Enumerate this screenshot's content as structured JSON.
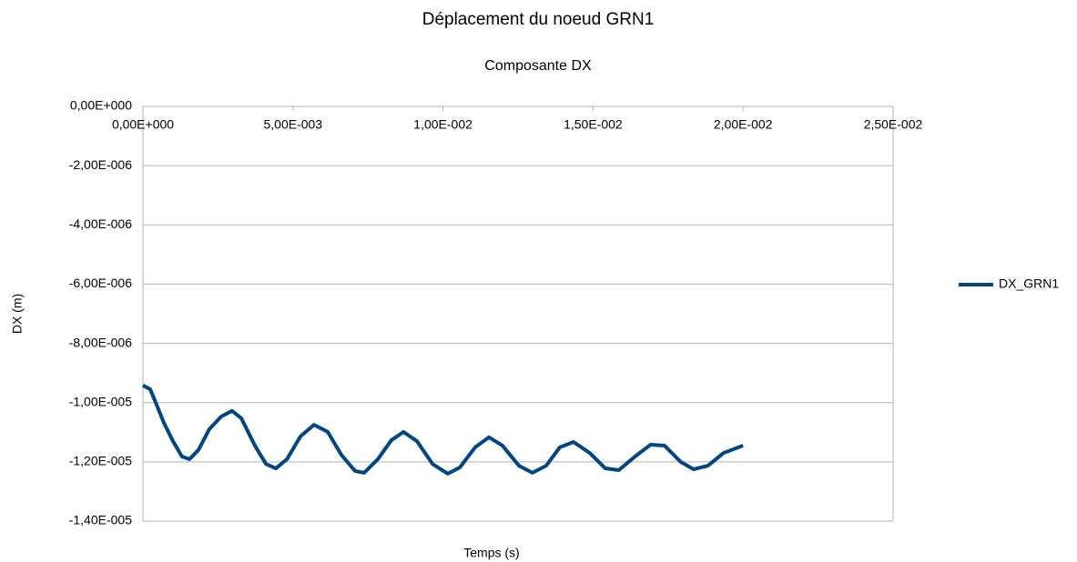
{
  "chart_data": {
    "type": "line",
    "title": "Déplacement du noeud GRN1",
    "subtitle": "Composante DX",
    "x_label": "Temps (s)",
    "y_label": "DX (m)",
    "x": [
      0,
      0.000243,
      0.000455,
      0.000698,
      0.001,
      0.0013,
      0.00155,
      0.00185,
      0.00221,
      0.00261,
      0.00297,
      0.00328,
      0.00373,
      0.0041,
      0.00443,
      0.0048,
      0.00525,
      0.0057,
      0.00616,
      0.00661,
      0.00707,
      0.00737,
      0.00783,
      0.00828,
      0.00868,
      0.00913,
      0.00965,
      0.01016,
      0.01056,
      0.01107,
      0.01153,
      0.01198,
      0.01253,
      0.01298,
      0.01344,
      0.01389,
      0.01435,
      0.01489,
      0.01541,
      0.01586,
      0.0164,
      0.01692,
      0.01738,
      0.01792,
      0.01835,
      0.01883,
      0.01935,
      0.02
    ],
    "series": [
      {
        "name": "DX_GRN1",
        "color": "#004586",
        "values": [
          -9.42e-06,
          -9.55e-06,
          -1.007e-05,
          -1.068e-05,
          -1.13e-05,
          -1.182e-05,
          -1.191e-05,
          -1.16e-05,
          -1.09e-05,
          -1.047e-05,
          -1.028e-05,
          -1.053e-05,
          -1.145e-05,
          -1.207e-05,
          -1.222e-05,
          -1.191e-05,
          -1.114e-05,
          -1.075e-05,
          -1.099e-05,
          -1.176e-05,
          -1.231e-05,
          -1.237e-05,
          -1.191e-05,
          -1.127e-05,
          -1.099e-05,
          -1.13e-05,
          -1.207e-05,
          -1.24e-05,
          -1.219e-05,
          -1.151e-05,
          -1.117e-05,
          -1.145e-05,
          -1.213e-05,
          -1.237e-05,
          -1.213e-05,
          -1.151e-05,
          -1.133e-05,
          -1.17e-05,
          -1.222e-05,
          -1.228e-05,
          -1.182e-05,
          -1.142e-05,
          -1.145e-05,
          -1.2e-05,
          -1.225e-05,
          -1.213e-05,
          -1.17e-05,
          -1.145e-05
        ]
      }
    ],
    "xlim": [
      0,
      0.025
    ],
    "xticks": [
      {
        "value": 0,
        "label": "0,00E+000"
      },
      {
        "value": 0.005,
        "label": "5,00E-003"
      },
      {
        "value": 0.01,
        "label": "1,00E-002"
      },
      {
        "value": 0.015,
        "label": "1,50E-002"
      },
      {
        "value": 0.02,
        "label": "2,00E-002"
      },
      {
        "value": 0.025,
        "label": "2,50E-002"
      }
    ],
    "ylim": [
      -1.4e-05,
      0
    ],
    "yticks": [
      {
        "value": 0,
        "label": "0,00E+000"
      },
      {
        "value": -2e-06,
        "label": "-2,00E-006"
      },
      {
        "value": -4e-06,
        "label": "-4,00E-006"
      },
      {
        "value": -6e-06,
        "label": "-6,00E-006"
      },
      {
        "value": -8e-06,
        "label": "-8,00E-006"
      },
      {
        "value": -1e-05,
        "label": "-1,00E-005"
      },
      {
        "value": -1.2e-05,
        "label": "-1,20E-005"
      },
      {
        "value": -1.4e-05,
        "label": "-1,40E-005"
      }
    ],
    "grid": true,
    "legend": "right"
  }
}
